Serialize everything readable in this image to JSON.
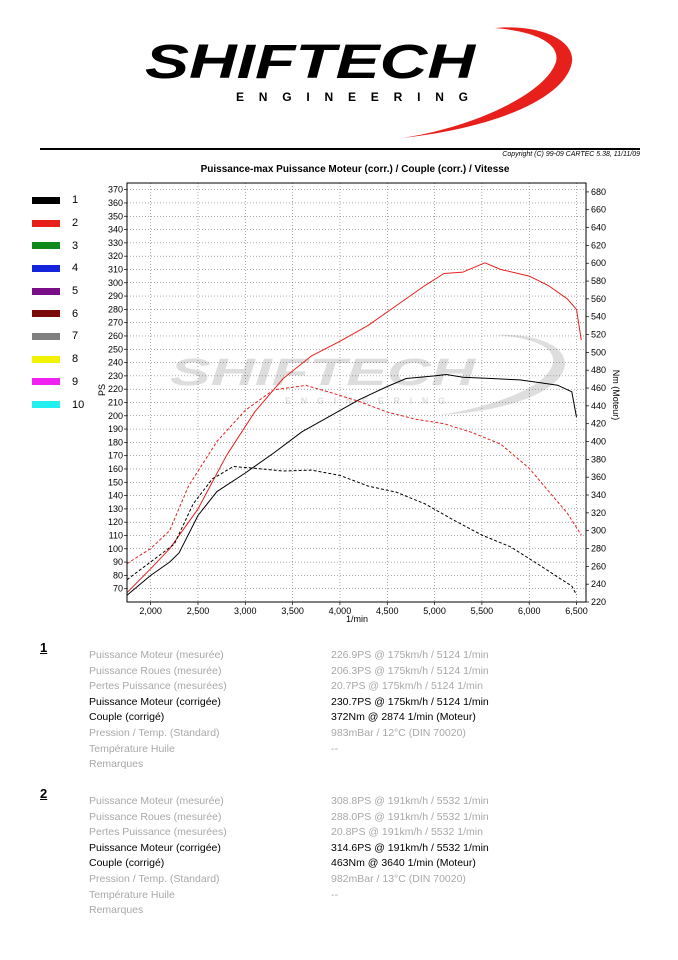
{
  "brand": {
    "logo_text": "SHIFTECH",
    "logo_subtitle": "ENGINEERING",
    "watermark_text": "SHIFTECH",
    "watermark_subtitle": "ENGINEERING"
  },
  "copyright": "Copyright (C) 99-09 CARTEC 5.38, 11/11/09",
  "legend": [
    {
      "label": "1",
      "color": "#000000"
    },
    {
      "label": "2",
      "color": "#e8201c"
    },
    {
      "label": "3",
      "color": "#0f8a1a"
    },
    {
      "label": "4",
      "color": "#1424dc"
    },
    {
      "label": "5",
      "color": "#7a0e86"
    },
    {
      "label": "6",
      "color": "#7a0a0a"
    },
    {
      "label": "7",
      "color": "#808080"
    },
    {
      "label": "8",
      "color": "#f2f200"
    },
    {
      "label": "9",
      "color": "#f020f0"
    },
    {
      "label": "10",
      "color": "#22f0f0"
    }
  ],
  "chart_data": {
    "type": "line",
    "title": "Puissance-max Puissance Moteur (corr.) / Couple (corr.) / Vitesse",
    "xlabel": "1/min",
    "ylabel": "PS",
    "y2label": "Nm (Moteur)",
    "xlim": [
      1750,
      6600
    ],
    "ylim": [
      60,
      375
    ],
    "y2lim": [
      220,
      690
    ],
    "x_ticks": [
      2000,
      2500,
      3000,
      3500,
      4000,
      4500,
      5000,
      5500,
      6000,
      6500
    ],
    "x_tick_labels": [
      "2,000",
      "2,500",
      "3,000",
      "3,500",
      "4,000",
      "4,500",
      "5,000",
      "5,500",
      "6,000",
      "6,500"
    ],
    "y_ticks": [
      70,
      80,
      90,
      100,
      110,
      120,
      130,
      140,
      150,
      160,
      170,
      180,
      190,
      200,
      210,
      220,
      230,
      240,
      250,
      260,
      270,
      280,
      290,
      300,
      310,
      320,
      330,
      340,
      350,
      360,
      370
    ],
    "y2_ticks": [
      220,
      240,
      260,
      280,
      300,
      320,
      340,
      360,
      380,
      400,
      420,
      440,
      460,
      480,
      500,
      520,
      540,
      560,
      580,
      600,
      620,
      640,
      660,
      680
    ],
    "grid": true,
    "series": [
      {
        "name": "1",
        "color": "#000000",
        "dashed": false,
        "axis": "left",
        "x": [
          1750,
          2000,
          2200,
          2300,
          2500,
          2700,
          3000,
          3300,
          3600,
          3900,
          4200,
          4500,
          4700,
          5000,
          5124,
          5300,
          5600,
          5900,
          6100,
          6300,
          6450,
          6500
        ],
        "y": [
          65,
          80,
          90,
          97,
          125,
          143,
          157,
          172,
          188,
          200,
          212,
          222,
          228,
          230,
          231,
          229,
          228,
          227,
          225,
          223,
          218,
          199
        ]
      },
      {
        "name": "2",
        "color": "#e8201c",
        "dashed": false,
        "axis": "left",
        "x": [
          1750,
          2000,
          2200,
          2500,
          2800,
          3100,
          3400,
          3700,
          4000,
          4300,
          4600,
          4900,
          5100,
          5300,
          5532,
          5700,
          6000,
          6200,
          6400,
          6500,
          6550
        ],
        "y": [
          67,
          85,
          100,
          130,
          170,
          203,
          228,
          245,
          256,
          268,
          283,
          298,
          307,
          308,
          315,
          310,
          305,
          298,
          288,
          280,
          257
        ]
      },
      {
        "name": "1",
        "color": "#000000",
        "dashed": true,
        "axis": "right",
        "x": [
          1750,
          2000,
          2250,
          2450,
          2650,
          2874,
          3100,
          3400,
          3700,
          4000,
          4300,
          4600,
          4900,
          5200,
          5500,
          5800,
          6100,
          6300,
          6450,
          6500
        ],
        "y": [
          245,
          265,
          285,
          330,
          358,
          372,
          370,
          367,
          368,
          362,
          350,
          343,
          330,
          312,
          295,
          282,
          262,
          248,
          238,
          228
        ]
      },
      {
        "name": "2",
        "color": "#e8201c",
        "dashed": true,
        "axis": "right",
        "x": [
          1750,
          2000,
          2200,
          2400,
          2700,
          3000,
          3300,
          3640,
          3900,
          4200,
          4500,
          4800,
          5100,
          5400,
          5700,
          6000,
          6200,
          6400,
          6550
        ],
        "y": [
          263,
          280,
          300,
          350,
          400,
          435,
          458,
          463,
          455,
          445,
          433,
          425,
          420,
          410,
          397,
          370,
          345,
          320,
          295
        ]
      }
    ]
  },
  "results": [
    {
      "num": "1",
      "rows": [
        {
          "label": "Puissance Moteur (mesurée)",
          "value": "226.9PS @ 175km/h / 5124 1/min",
          "style": "dim"
        },
        {
          "label": "Puissance Roues (mesurée)",
          "value": "206.3PS @ 175km/h / 5124 1/min",
          "style": "dim"
        },
        {
          "label": "Pertes Puissance (mesurées)",
          "value": "20.7PS @ 175km/h / 5124 1/min",
          "style": "dim"
        },
        {
          "label": "Puissance Moteur (corrigée)",
          "value": "230.7PS @ 175km/h / 5124 1/min",
          "style": "bold"
        },
        {
          "label": "Couple (corrigé)",
          "value": "372Nm @ 2874 1/min (Moteur)",
          "style": "bold"
        },
        {
          "label": "Pression / Temp. (Standard)",
          "value": "983mBar / 12°C   (DIN 70020)",
          "style": "dim"
        },
        {
          "label": "Température Huile",
          "value": "--",
          "style": "dim"
        },
        {
          "label": "Remarques",
          "value": "",
          "style": "dim"
        }
      ]
    },
    {
      "num": "2",
      "rows": [
        {
          "label": "Puissance Moteur (mesurée)",
          "value": "308.8PS @ 191km/h / 5532 1/min",
          "style": "dim"
        },
        {
          "label": "Puissance Roues (mesurée)",
          "value": "288.0PS @ 191km/h / 5532 1/min",
          "style": "dim"
        },
        {
          "label": "Pertes Puissance (mesurées)",
          "value": "20.8PS @ 191km/h / 5532 1/min",
          "style": "dim"
        },
        {
          "label": "Puissance Moteur (corrigée)",
          "value": "314.6PS @ 191km/h / 5532 1/min",
          "style": "bold"
        },
        {
          "label": "Couple (corrigé)",
          "value": "463Nm @ 3640 1/min (Moteur)",
          "style": "bold"
        },
        {
          "label": "Pression / Temp. (Standard)",
          "value": "982mBar / 13°C   (DIN 70020)",
          "style": "dim"
        },
        {
          "label": "Température Huile",
          "value": "--",
          "style": "dim"
        },
        {
          "label": "Remarques",
          "value": "",
          "style": "dim"
        }
      ]
    }
  ]
}
